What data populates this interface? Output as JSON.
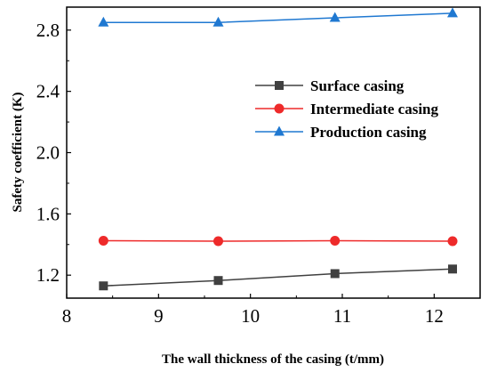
{
  "chart_data": {
    "type": "line",
    "title": "",
    "xlabel": "The wall thickness of the casing (t/mm)",
    "ylabel": "Safety coefficient (K)",
    "xlim": [
      8,
      12.5
    ],
    "ylim": [
      1.05,
      2.95
    ],
    "xticks": [
      8,
      9,
      10,
      11,
      12
    ],
    "xtick_labels": [
      "8",
      "9",
      "10",
      "11",
      "12"
    ],
    "yticks": [
      1.2,
      1.6,
      2.0,
      2.4,
      2.8
    ],
    "ytick_labels": [
      "1.2",
      "1.6",
      "2.0",
      "2.4",
      "2.8"
    ],
    "grid": false,
    "legend_position": "right-center",
    "x": [
      8.4,
      9.65,
      10.92,
      12.2
    ],
    "series": [
      {
        "name": "Surface casing",
        "values": [
          1.13,
          1.165,
          1.21,
          1.24
        ],
        "color": "#404040",
        "marker": "square"
      },
      {
        "name": "Intermediate casing",
        "values": [
          1.425,
          1.422,
          1.425,
          1.422
        ],
        "color": "#ee2a2a",
        "marker": "circle"
      },
      {
        "name": "Production casing",
        "values": [
          2.85,
          2.85,
          2.88,
          2.91
        ],
        "color": "#1f78d1",
        "marker": "triangle"
      }
    ]
  }
}
